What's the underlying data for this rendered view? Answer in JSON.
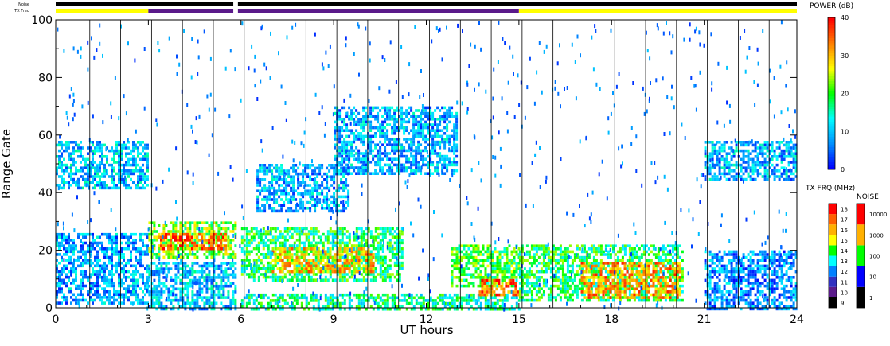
{
  "chart_data": {
    "type": "heatmap",
    "top_bars": {
      "noise_label": "Noise",
      "txfreq_label": "TX Freq",
      "gap_hours": [
        5.75,
        5.9
      ],
      "txfreq_segments": [
        {
          "from": 0,
          "to": 3,
          "color": "#ffff00"
        },
        {
          "from": 3,
          "to": 5.75,
          "color": "#5a1a8a"
        },
        {
          "from": 5.9,
          "to": 15,
          "color": "#5a1a8a"
        },
        {
          "from": 15,
          "to": 24,
          "color": "#ffff00"
        }
      ]
    },
    "x_axis": {
      "label": "UT hours",
      "range": [
        0,
        24
      ],
      "ticks": [
        0,
        3,
        6,
        9,
        12,
        15,
        18,
        21,
        24
      ],
      "scan_lines": [
        1,
        2,
        3,
        4,
        5,
        6,
        7,
        8,
        9,
        10,
        11,
        12,
        13,
        14,
        15,
        16,
        17,
        18,
        19,
        20,
        21,
        22,
        23
      ]
    },
    "y_axis": {
      "label": "Range Gate",
      "range": [
        0,
        100
      ],
      "ticks": [
        0,
        20,
        40,
        60,
        80,
        100
      ]
    },
    "echo_regions": [
      {
        "x0": 0.0,
        "x1": 3.0,
        "y0": 42,
        "y1": 58,
        "level": 0.25
      },
      {
        "x0": 0.0,
        "x1": 3.0,
        "y0": 2,
        "y1": 26,
        "level": 0.2
      },
      {
        "x0": 3.0,
        "x1": 5.8,
        "y0": 18,
        "y1": 30,
        "level": 0.55
      },
      {
        "x0": 3.3,
        "x1": 5.5,
        "y0": 21,
        "y1": 26,
        "level": 0.85
      },
      {
        "x0": 3.0,
        "x1": 5.8,
        "y0": 0,
        "y1": 16,
        "level": 0.25
      },
      {
        "x0": 6.0,
        "x1": 11.2,
        "y0": 10,
        "y1": 28,
        "level": 0.45
      },
      {
        "x0": 7.0,
        "x1": 10.3,
        "y0": 13,
        "y1": 21,
        "level": 0.75
      },
      {
        "x0": 6.0,
        "x1": 15.0,
        "y0": 0,
        "y1": 5,
        "level": 0.4
      },
      {
        "x0": 9.0,
        "x1": 13.0,
        "y0": 47,
        "y1": 70,
        "level": 0.22
      },
      {
        "x0": 6.5,
        "x1": 9.5,
        "y0": 34,
        "y1": 50,
        "level": 0.22
      },
      {
        "x0": 12.8,
        "x1": 15.0,
        "y0": 8,
        "y1": 22,
        "level": 0.5
      },
      {
        "x0": 13.7,
        "x1": 15.0,
        "y0": 5,
        "y1": 10,
        "level": 0.85
      },
      {
        "x0": 15.0,
        "x1": 20.3,
        "y0": 3,
        "y1": 22,
        "level": 0.45
      },
      {
        "x0": 17.0,
        "x1": 20.2,
        "y0": 4,
        "y1": 16,
        "level": 0.8
      },
      {
        "x0": 21.0,
        "x1": 24.0,
        "y0": 45,
        "y1": 58,
        "level": 0.22
      },
      {
        "x0": 21.0,
        "x1": 24.0,
        "y0": 0,
        "y1": 20,
        "level": 0.18
      }
    ],
    "colorbars": {
      "power": {
        "title": "POWER (dB)",
        "ticks": [
          "0",
          "10",
          "20",
          "30",
          "40"
        ],
        "gradient": [
          "#0000ff",
          "#0090ff",
          "#00ffff",
          "#00ff00",
          "#ffff00",
          "#ff8000",
          "#ff0000"
        ]
      },
      "tx_freq": {
        "title": "TX FRQ (MHz)",
        "ticks": [
          "9",
          "10",
          "11",
          "12",
          "13",
          "14",
          "15",
          "16",
          "17",
          "18"
        ],
        "colors": [
          "#000000",
          "#5a1a8a",
          "#3030c0",
          "#0080ff",
          "#00ffff",
          "#00ff00",
          "#ffff00",
          "#ffb000",
          "#ff6000",
          "#ff0000"
        ]
      },
      "noise": {
        "title": "NOISE",
        "ticks": [
          "1",
          "10",
          "100",
          "1000",
          "10000"
        ],
        "colors": [
          "#000000",
          "#0000ff",
          "#00ff00",
          "#ffb000",
          "#ff0000"
        ]
      }
    }
  }
}
